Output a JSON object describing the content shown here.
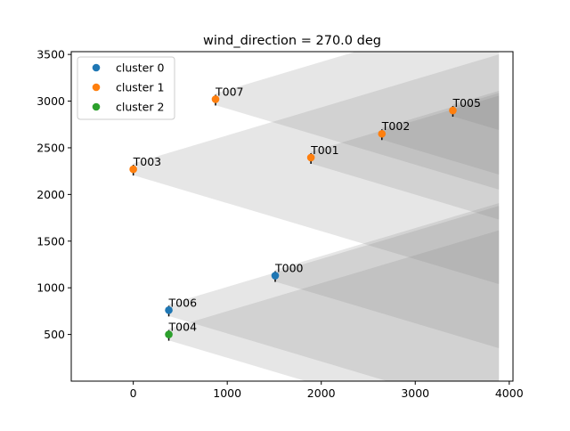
{
  "chart_data": {
    "type": "scatter",
    "title": "wind_direction = 270.0 deg",
    "xlabel": "",
    "ylabel": "",
    "xlim": [
      -660,
      4040
    ],
    "ylim": [
      0,
      3530
    ],
    "x_ticks": [
      0,
      1000,
      2000,
      3000,
      4000
    ],
    "y_ticks": [
      500,
      1000,
      1500,
      2000,
      2500,
      3000,
      3500
    ],
    "grid": false,
    "legend_position": "top-left",
    "series": [
      {
        "name": "cluster 0",
        "color": "#1f77b4",
        "points": [
          {
            "label": "T000",
            "x": 1510,
            "y": 1130
          },
          {
            "label": "T006",
            "x": 378,
            "y": 760
          }
        ]
      },
      {
        "name": "cluster 1",
        "color": "#ff7f0e",
        "points": [
          {
            "label": "T001",
            "x": 1890,
            "y": 2395
          },
          {
            "label": "T002",
            "x": 2645,
            "y": 2650
          },
          {
            "label": "T003",
            "x": 0,
            "y": 2270
          },
          {
            "label": "T005",
            "x": 3400,
            "y": 2900
          },
          {
            "label": "T007",
            "x": 875,
            "y": 3020
          }
        ]
      },
      {
        "name": "cluster 2",
        "color": "#2ca02c",
        "points": [
          {
            "label": "T004",
            "x": 378,
            "y": 500
          }
        ]
      }
    ],
    "wake_color": "#808080",
    "wake_extent_x": 3890,
    "wake_halfwidth": 63,
    "wake_spread": 0.3
  }
}
